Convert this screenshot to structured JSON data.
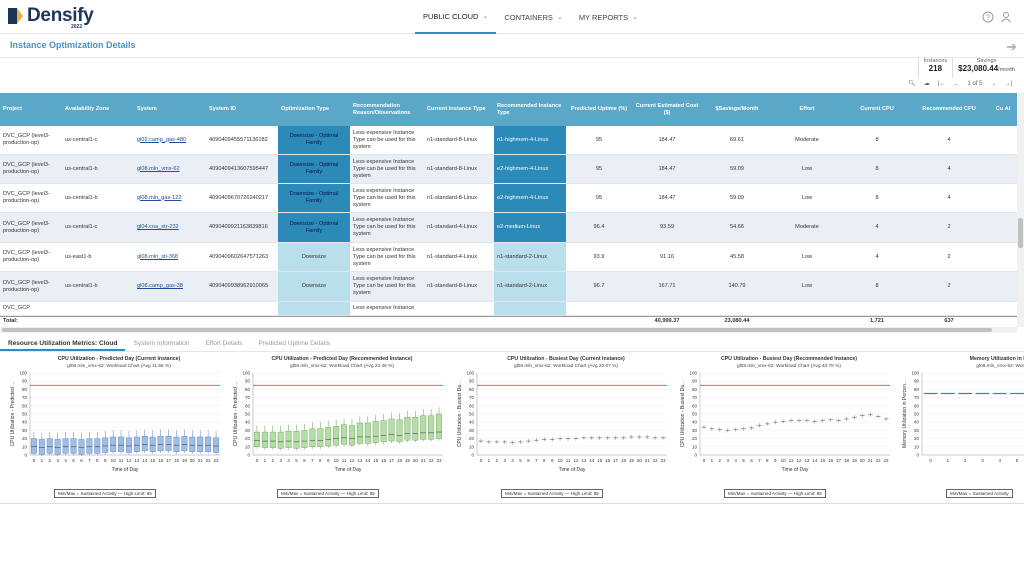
{
  "app": {
    "name": "Densify",
    "year": "2022"
  },
  "nav": [
    {
      "label": "PUBLIC CLOUD",
      "active": true
    },
    {
      "label": "CONTAINERS",
      "active": false
    },
    {
      "label": "MY REPORTS",
      "active": false
    }
  ],
  "page": {
    "title": "Instance Optimization Details"
  },
  "stats": {
    "instances_label": "Instances",
    "instances_value": "218",
    "savings_label": "Savings",
    "savings_value": "$23,080.44",
    "savings_unit": "/month"
  },
  "pager": {
    "text": "1 of 5"
  },
  "table": {
    "headers": [
      "Project",
      "Availability Zone",
      "System",
      "System ID",
      "Optimization Type",
      "Recommendation Reason/Observations",
      "Current Instance Type",
      "Recommended Instance Type",
      "Predicted Uptime (%)",
      "Current Estimated Cost ($)",
      "$Savings/Month",
      "Effort",
      "Current CPU",
      "Recommended CPU",
      "Cu Al"
    ],
    "rows": [
      {
        "project": "DVC_GCP (level3-production-op)",
        "zone": "us-central1-c",
        "system": "gl02.camp_gas-480",
        "id": "4090409455571136182",
        "opt": "Downsize - Optimal Family",
        "optStyle": "dark",
        "reason": "Less expensive Instance Type can be used for this system",
        "cur": "n1-standard-8-Linux",
        "rec": "n1-highmem-4-Linux",
        "recStyle": "dark",
        "uptime": "95",
        "cost": "184.47",
        "savings": "69.61",
        "effort": "Moderate",
        "ccpu": "8",
        "rcpu": "4"
      },
      {
        "project": "DVC_GCP (level3-production-op)",
        "zone": "us-central1-b",
        "system": "gl08.mln_vmx-62",
        "id": "4090409413607595447",
        "opt": "Downsize - Optimal Family",
        "optStyle": "dark",
        "reason": "Less expensive Instance Type can be used for this system",
        "cur": "n1-standard-8-Linux",
        "rec": "e2-highmem-4-Linux",
        "recStyle": "dark",
        "uptime": "95",
        "cost": "184.47",
        "savings": "59.09",
        "effort": "Low",
        "ccpu": "8",
        "rcpu": "4"
      },
      {
        "project": "DVC_GCP (level3-production-op)",
        "zone": "us-central1-b",
        "system": "gl08.mln_gas-122",
        "id": "4090409670726240217",
        "opt": "Downsize - Optimal Family",
        "optStyle": "dark",
        "reason": "Less expensive Instance Type can be used for this system",
        "cur": "n1-standard-8-Linux",
        "rec": "e2-highmem-4-Linux",
        "recStyle": "dark",
        "uptime": "95",
        "cost": "184.47",
        "savings": "59.09",
        "effort": "Low",
        "ccpu": "8",
        "rcpu": "4"
      },
      {
        "project": "DVC_GCP (level3-production-op)",
        "zone": "us-central1-c",
        "system": "gl04.coa_str-232",
        "id": "4090409921163839816",
        "opt": "Downsize - Optimal Family",
        "optStyle": "dark",
        "reason": "Less expensive Instance Type can be used for this system",
        "cur": "n1-standard-4-Linux",
        "rec": "e2-medium-Linux",
        "recStyle": "dark",
        "uptime": "96.4",
        "cost": "93.59",
        "savings": "54.66",
        "effort": "Moderate",
        "ccpu": "4",
        "rcpu": "2"
      },
      {
        "project": "DVC_GCP (level3-production-op)",
        "zone": "us-east1-b",
        "system": "gl08.mln_sti-368",
        "id": "4090409602647571263",
        "opt": "Downsize",
        "optStyle": "light",
        "reason": "Less expensive Instance Type can be used for this system",
        "cur": "n1-standard-4-Linux",
        "rec": "n1-standard-2-Linux",
        "recStyle": "light",
        "uptime": "93.9",
        "cost": "91.16",
        "savings": "45.58",
        "effort": "Low",
        "ccpu": "4",
        "rcpu": "2"
      },
      {
        "project": "DVC_GCP (level3-production-op)",
        "zone": "us-central1-b",
        "system": "gl08.camp_gas-38",
        "id": "4090409938962910065",
        "opt": "Downsize",
        "optStyle": "light",
        "reason": "Less expensive Instance Type can be used for this system",
        "cur": "n1-standard-8-Linux",
        "rec": "n1-standard-2-Linux",
        "recStyle": "light",
        "uptime": "96.7",
        "cost": "167.71",
        "savings": "140.79",
        "effort": "Low",
        "ccpu": "8",
        "rcpu": "2"
      },
      {
        "project": "DVC_GCP",
        "zone": "",
        "system": "",
        "id": "",
        "opt": "",
        "optStyle": "light",
        "reason": "Less expensive Instance",
        "cur": "",
        "rec": "",
        "recStyle": "light",
        "uptime": "",
        "cost": "",
        "savings": "",
        "effort": "",
        "ccpu": "",
        "rcpu": ""
      }
    ],
    "totals": {
      "label": "Total:",
      "cost": "40,999.37",
      "savings": "23,080.44",
      "ccpu": "1,721",
      "rcpu": "637"
    }
  },
  "tabs": [
    {
      "label": "Resource Utilization Metrics: Cloud",
      "active": true
    },
    {
      "label": "System Information",
      "active": false
    },
    {
      "label": "Effort Details",
      "active": false
    },
    {
      "label": "Predicted Uptime Details",
      "active": false
    }
  ],
  "charts": [
    {
      "title": "CPU Utilization - Predicted Day (Current Instance)",
      "subtitle": "gl08.mln_vmx-62: Workload Chart (Avg 11.55 %)",
      "ylabel": "CPU Utilization - Predicted ...",
      "xlabel": "Time of Day",
      "legend": "Min/Max = Sustained Activity — High Limit: 85",
      "style": "box-blue"
    },
    {
      "title": "CPU Utilization - Predicted Day (Recommended Instance)",
      "subtitle": "gl08.mln_vmx-62: Workload Chart (Avg 23.46 %)",
      "ylabel": "CPU Utilization - Predicted ...",
      "xlabel": "Time of Day",
      "legend": "Min/Max = Sustained Activity — High Limit: 85",
      "style": "box-green"
    },
    {
      "title": "CPU Utilization - Busiest Day (Current Instance)",
      "subtitle": "gl08.mln_vmx-62: Workload Chart (Avg 20.07 %)",
      "ylabel": "CPU Utilization - Busiest Da...",
      "xlabel": "Time of Day",
      "legend": "Min/Max = Sustained Activity — High Limit: 85",
      "style": "line-low"
    },
    {
      "title": "CPU Utilization - Busiest Day (Recommended Instance)",
      "subtitle": "gl08.mln_vmx-62: Workload Chart (Avg 40.78 %)",
      "ylabel": "CPU Utilization - Busiest Da...",
      "xlabel": "Time of Day",
      "legend": "Min/Max = Sustained Activity — High Limit: 85",
      "style": "line-high"
    },
    {
      "title": "Memory Utilization in Percent (Cu",
      "subtitle": "gl08.mln_vmx-62: Workload Cha",
      "ylabel": "Memory Utilization in Percen...",
      "xlabel": "",
      "legend": "Min/Max = Sustained Activity",
      "style": "mem"
    }
  ],
  "chart_data": [
    {
      "type": "box",
      "title": "CPU Utilization - Predicted Day (Current Instance)",
      "xlabel": "Time of Day",
      "ylabel": "CPU Utilization - Predicted ...",
      "ylim": [
        0,
        100
      ],
      "high_limit": 85,
      "x": [
        0,
        1,
        2,
        3,
        4,
        5,
        6,
        7,
        8,
        9,
        10,
        11,
        12,
        13,
        14,
        15,
        16,
        17,
        18,
        19,
        20,
        21,
        22,
        23
      ],
      "median": [
        10,
        9,
        10,
        9,
        10,
        10,
        9,
        10,
        10,
        11,
        12,
        12,
        11,
        12,
        13,
        12,
        13,
        13,
        12,
        13,
        12,
        12,
        12,
        11
      ]
    },
    {
      "type": "box",
      "title": "CPU Utilization - Predicted Day (Recommended Instance)",
      "xlabel": "Time of Day",
      "ylabel": "CPU Utilization - Predicted ...",
      "ylim": [
        0,
        100
      ],
      "high_limit": 85,
      "x": [
        0,
        1,
        2,
        3,
        4,
        5,
        6,
        7,
        8,
        9,
        10,
        11,
        12,
        13,
        14,
        15,
        16,
        17,
        18,
        19,
        20,
        21,
        22,
        23
      ],
      "median": [
        18,
        17,
        17,
        16,
        17,
        16,
        17,
        18,
        18,
        19,
        20,
        21,
        20,
        22,
        22,
        23,
        24,
        25,
        24,
        26,
        26,
        27,
        27,
        28
      ]
    },
    {
      "type": "line",
      "title": "CPU Utilization - Busiest Day (Current Instance)",
      "xlabel": "Time of Day",
      "ylabel": "CPU Utilization - Busiest Da...",
      "ylim": [
        0,
        100
      ],
      "high_limit": 85,
      "x": [
        0,
        1,
        2,
        3,
        4,
        5,
        6,
        7,
        8,
        9,
        10,
        11,
        12,
        13,
        14,
        15,
        16,
        17,
        18,
        19,
        20,
        21,
        22,
        23
      ],
      "values": [
        17,
        16,
        16,
        16,
        15,
        16,
        17,
        18,
        19,
        19,
        20,
        20,
        20,
        21,
        21,
        21,
        21,
        21,
        21,
        22,
        22,
        22,
        21,
        21
      ]
    },
    {
      "type": "line",
      "title": "CPU Utilization - Busiest Day (Recommended Instance)",
      "xlabel": "Time of Day",
      "ylabel": "CPU Utilization - Busiest Da...",
      "ylim": [
        0,
        100
      ],
      "high_limit": 85,
      "x": [
        0,
        1,
        2,
        3,
        4,
        5,
        6,
        7,
        8,
        9,
        10,
        11,
        12,
        13,
        14,
        15,
        16,
        17,
        18,
        19,
        20,
        21,
        22,
        23
      ],
      "values": [
        34,
        32,
        31,
        30,
        31,
        32,
        33,
        36,
        38,
        40,
        41,
        42,
        42,
        42,
        41,
        42,
        43,
        42,
        44,
        46,
        48,
        49,
        47,
        44
      ]
    },
    {
      "type": "line",
      "title": "Memory Utilization in Percent (Cu",
      "ylabel": "Memory Utilization in Percen...",
      "ylim": [
        0,
        100
      ],
      "high_limit": 85,
      "x": [
        0,
        1,
        2,
        3,
        4,
        5,
        6,
        7,
        8,
        9,
        10
      ],
      "values": [
        75,
        75,
        75,
        75,
        75,
        75,
        75,
        75,
        75,
        75,
        75
      ]
    }
  ],
  "colors": {
    "header": "#5aa7c8",
    "optDark": "#2b8ab8",
    "optLight": "#b9dfea",
    "accent": "#2a8fc4",
    "limit": "#e0455a"
  }
}
